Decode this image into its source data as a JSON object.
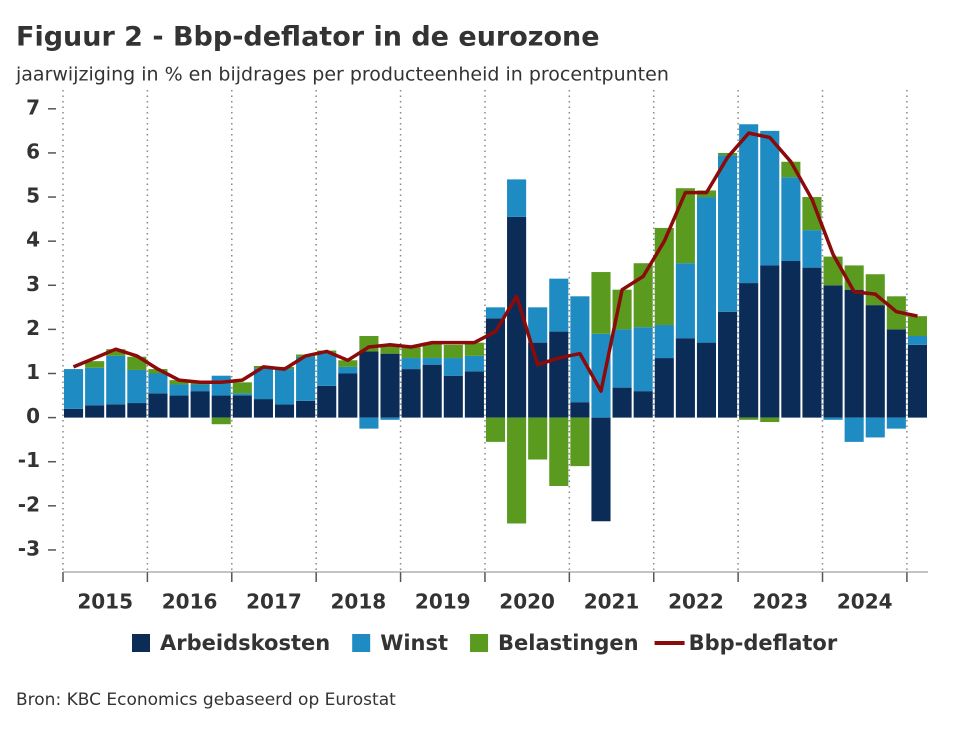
{
  "chart_data": {
    "type": "stacked-bar-line",
    "title": "Figuur 2 - Bbp-deflator in de eurozone",
    "subtitle": "jaarwijziging in % en bijdrages per producteenheid in procentpunten",
    "source": "Bron: KBC Economics gebaseerd op Eurostat",
    "categories": [
      null,
      "2015",
      null,
      null,
      null,
      "2016",
      null,
      null,
      null,
      "2017",
      null,
      null,
      null,
      "2018",
      null,
      null,
      null,
      "2019",
      null,
      null,
      null,
      "2020",
      null,
      null,
      null,
      "2021",
      null,
      null,
      null,
      "2022",
      null,
      null,
      null,
      "2023",
      null,
      null,
      null,
      "2024",
      null,
      null,
      null
    ],
    "series": [
      {
        "name": "Arbeidskosten",
        "color": "#0b2c57",
        "kind": "bar",
        "values": [
          0.2,
          0.28,
          0.3,
          0.33,
          0.55,
          0.5,
          0.6,
          0.5,
          0.5,
          0.42,
          0.3,
          0.38,
          0.72,
          1.0,
          1.5,
          1.45,
          1.1,
          1.2,
          0.95,
          1.05,
          2.25,
          4.55,
          1.7,
          1.95,
          0.35,
          -2.35,
          0.68,
          0.6,
          1.35,
          1.8,
          1.7,
          2.4,
          3.05,
          3.45,
          3.55,
          3.4,
          3.0,
          2.9,
          2.55,
          2.0,
          1.65
        ]
      },
      {
        "name": "Winst",
        "color": "#1e8bc3",
        "kind": "bar",
        "values": [
          0.9,
          0.85,
          1.1,
          0.75,
          0.45,
          0.25,
          0.15,
          0.45,
          0.05,
          0.7,
          0.8,
          1.0,
          0.75,
          0.15,
          -0.25,
          -0.05,
          0.25,
          0.15,
          0.4,
          0.35,
          0.25,
          0.85,
          0.8,
          1.2,
          2.4,
          1.9,
          1.32,
          1.45,
          0.75,
          1.7,
          3.3,
          3.55,
          3.6,
          3.05,
          1.9,
          0.85,
          -0.05,
          -0.55,
          -0.45,
          -0.25,
          0.2
        ]
      },
      {
        "name": "Belastingen",
        "color": "#5a9a1f",
        "kind": "bar",
        "values": [
          0,
          0.15,
          0.15,
          0.3,
          0.1,
          0.1,
          0.05,
          -0.15,
          0.25,
          0.05,
          0.05,
          0.05,
          0.05,
          0.15,
          0.35,
          0.2,
          0.25,
          0.35,
          0.3,
          0.3,
          -0.55,
          -2.4,
          -0.95,
          -1.55,
          -1.1,
          1.4,
          0.9,
          1.45,
          2.2,
          1.7,
          0.15,
          0.05,
          -0.05,
          -0.1,
          0.35,
          0.75,
          0.65,
          0.55,
          0.7,
          0.75,
          0.45
        ]
      },
      {
        "name": "Bbp-deflator",
        "color": "#8b0a0a",
        "kind": "line",
        "values": [
          1.15,
          1.35,
          1.55,
          1.4,
          1.1,
          0.85,
          0.8,
          0.8,
          0.85,
          1.15,
          1.1,
          1.4,
          1.5,
          1.3,
          1.6,
          1.65,
          1.6,
          1.7,
          1.7,
          1.7,
          1.95,
          2.75,
          1.2,
          1.35,
          1.45,
          0.6,
          2.9,
          3.2,
          4.0,
          5.1,
          5.1,
          5.9,
          6.45,
          6.35,
          5.8,
          4.95,
          3.7,
          2.85,
          2.8,
          2.4,
          2.3
        ]
      }
    ],
    "ylim": [
      -3.5,
      7.2
    ],
    "yticks": [
      -3,
      -2,
      -1,
      0,
      1,
      2,
      3,
      4,
      5,
      6,
      7
    ],
    "legend": "bottom"
  }
}
